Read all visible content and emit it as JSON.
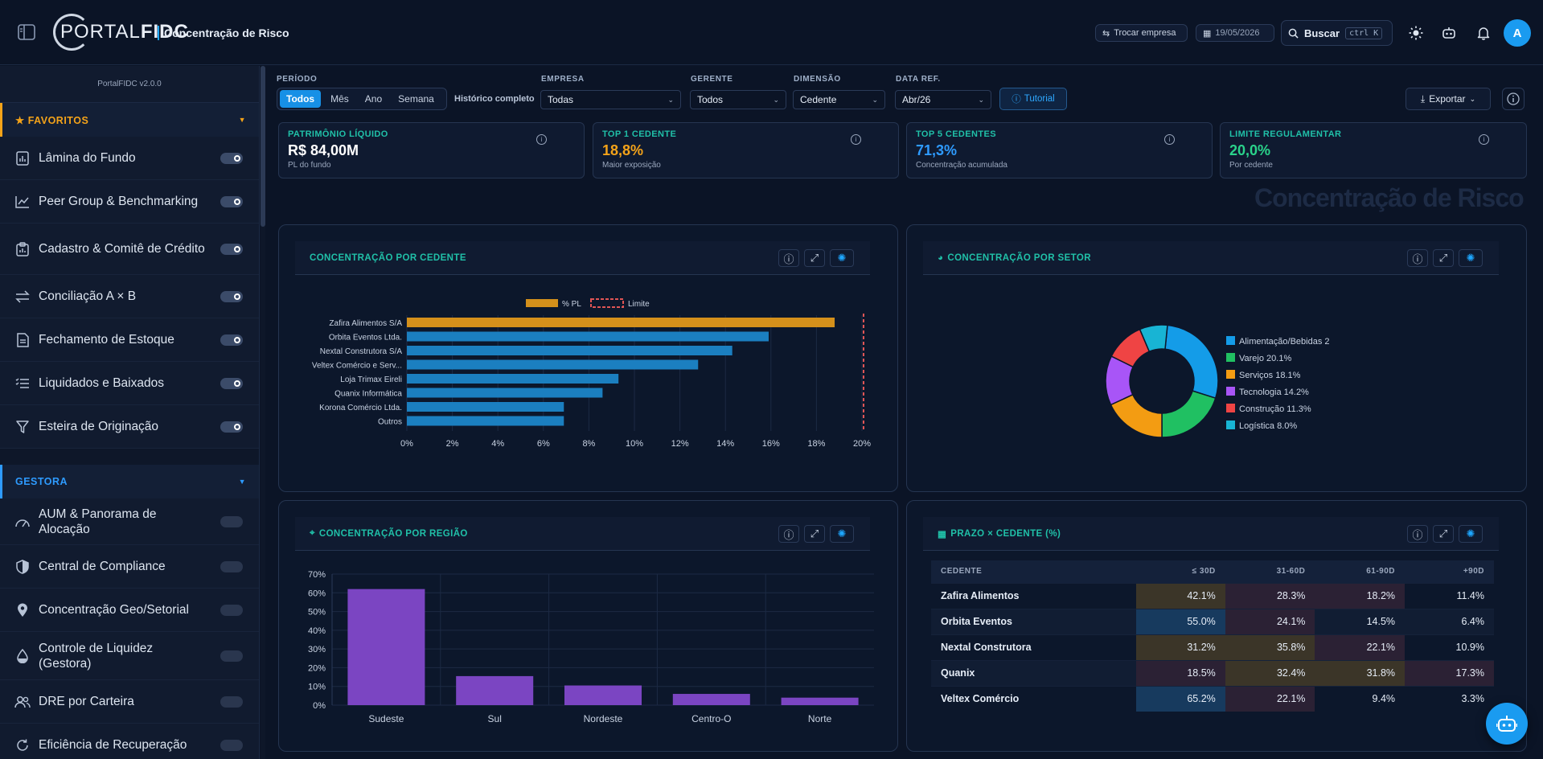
{
  "header": {
    "logo_text_a": "PORTAL",
    "logo_text_b": "FIDC",
    "page_title": "Concentração de Risco",
    "switch_company": "Trocar empresa",
    "date": "19/05/2026",
    "search_label": "Buscar",
    "shortcut": "ctrl K",
    "avatar_initial": "A"
  },
  "sidebar": {
    "version": "PortalFIDC v2.0.0",
    "favorites_title": "FAVORITOS",
    "favorites": [
      {
        "label": "Lâmina do Fundo",
        "icon": "report-icon",
        "enabled": true
      },
      {
        "label": "Peer Group & Benchmarking",
        "icon": "trend-icon",
        "enabled": true
      },
      {
        "label": "Cadastro & Comitê de Crédito",
        "icon": "clipboard-icon",
        "enabled": true
      },
      {
        "label": "Conciliação A × B",
        "icon": "swap-icon",
        "enabled": true
      },
      {
        "label": "Fechamento de Estoque",
        "icon": "document-icon",
        "enabled": true
      },
      {
        "label": "Liquidados e Baixados",
        "icon": "list-check-icon",
        "enabled": true
      },
      {
        "label": "Esteira de Originação",
        "icon": "funnel-icon",
        "enabled": true
      }
    ],
    "gestora_title": "GESTORA",
    "gestora": [
      {
        "label": "AUM & Panorama de Alocação",
        "icon": "gauge-icon",
        "enabled": false
      },
      {
        "label": "Central de Compliance",
        "icon": "shield-icon",
        "enabled": false
      },
      {
        "label": "Concentração Geo/Setorial",
        "icon": "pin-icon",
        "enabled": false
      },
      {
        "label": "Controle de Liquidez (Gestora)",
        "icon": "droplet-icon",
        "enabled": false
      },
      {
        "label": "DRE por Carteira",
        "icon": "users-icon",
        "enabled": false
      },
      {
        "label": "Eficiência de Recuperação",
        "icon": "refresh-icon",
        "enabled": false
      }
    ]
  },
  "filters": {
    "period_label": "PERÍODO",
    "period_options": [
      "Todos",
      "Mês",
      "Ano",
      "Semana"
    ],
    "period_selected": "Todos",
    "history": "Histórico completo",
    "empresa_label": "EMPRESA",
    "empresa_value": "Todas",
    "gerente_label": "GERENTE",
    "gerente_value": "Todos",
    "dimensao_label": "DIMENSÃO",
    "dimensao_value": "Cedente",
    "dataref_label": "DATA REF.",
    "dataref_value": "Abr/26",
    "tutorial": "Tutorial",
    "export": "Exportar"
  },
  "kpis": [
    {
      "title": "PATRIMÔNIO LÍQUIDO",
      "value": "R$ 84,00M",
      "sub": "PL do fundo",
      "color": "#20c0a8",
      "value_color": "#ffffff"
    },
    {
      "title": "TOP 1 CEDENTE",
      "value": "18,8%",
      "sub": "Maior exposição",
      "color": "#20c0a8",
      "value_color": "#f4a319"
    },
    {
      "title": "TOP 5 CEDENTES",
      "value": "71,3%",
      "sub": "Concentração acumulada",
      "color": "#20c0a8",
      "value_color": "#2e9bff"
    },
    {
      "title": "LIMITE REGULAMENTAR",
      "value": "20,0%",
      "sub": "Por cedente",
      "color": "#20c0a8",
      "value_color": "#2ad38b"
    }
  ],
  "ghost_title": "Concentração de Risco",
  "panels": {
    "cedente_title": "CONCENTRAÇÃO POR CEDENTE",
    "setor_title": "CONCENTRAÇÃO POR SETOR",
    "regiao_title": "CONCENTRAÇÃO POR REGIÃO",
    "prazo_title": "PRAZO × CEDENTE (%)"
  },
  "chart_data": [
    {
      "type": "bar",
      "orientation": "horizontal",
      "categories": [
        "Zafira Alimentos S/A",
        "Orbita Eventos Ltda.",
        "Nextal Construtora S/A",
        "Veltex Comércio e Serv...",
        "Loja Trimax Eireli",
        "Quanix Informática",
        "Korona Comércio Ltda.",
        "Outros"
      ],
      "series": [
        {
          "name": "% PL",
          "values": [
            18.8,
            15.9,
            14.3,
            12.8,
            9.3,
            8.6,
            6.9,
            6.9
          ]
        }
      ],
      "highlight_color": "#d4901b",
      "bar_color": "#1b7fc0",
      "limit": {
        "name": "Limite",
        "value": 20
      },
      "xlim": [
        0,
        20
      ],
      "xticks": [
        "0%",
        "2%",
        "4%",
        "6%",
        "8%",
        "10%",
        "12%",
        "14%",
        "16%",
        "18%",
        "20%"
      ],
      "legend": "top"
    },
    {
      "type": "pie",
      "donut": true,
      "slices": [
        {
          "label": "Alimentação/Bebidas 2",
          "value": 28.3,
          "color": "#149ce8"
        },
        {
          "label": "Varejo 20.1%",
          "value": 20.1,
          "color": "#20c062"
        },
        {
          "label": "Serviços 18.1%",
          "value": 18.1,
          "color": "#f39c12"
        },
        {
          "label": "Tecnologia 14.2%",
          "value": 14.2,
          "color": "#a855f7"
        },
        {
          "label": "Construção 11.3%",
          "value": 11.3,
          "color": "#ef4444"
        },
        {
          "label": "Logística 8.0%",
          "value": 8.0,
          "color": "#18b4d4"
        }
      ],
      "legend": "right"
    },
    {
      "type": "bar",
      "categories": [
        "Sudeste",
        "Sul",
        "Nordeste",
        "Centro-O",
        "Norte"
      ],
      "values": [
        62,
        15.5,
        10.5,
        6,
        4
      ],
      "bar_color": "#7b45c2",
      "ylim": [
        0,
        70
      ],
      "yticks": [
        "0%",
        "10%",
        "20%",
        "30%",
        "40%",
        "50%",
        "60%",
        "70%"
      ]
    },
    {
      "type": "table",
      "columns": [
        "CEDENTE",
        "≤ 30D",
        "31-60D",
        "61-90D",
        "+90D"
      ],
      "rows": [
        [
          "Zafira Alimentos",
          "42.1%",
          "28.3%",
          "18.2%",
          "11.4%"
        ],
        [
          "Orbita Eventos",
          "55.0%",
          "24.1%",
          "14.5%",
          "6.4%"
        ],
        [
          "Nextal Construtora",
          "31.2%",
          "35.8%",
          "22.1%",
          "10.9%"
        ],
        [
          "Quanix",
          "18.5%",
          "32.4%",
          "31.8%",
          "17.3%"
        ],
        [
          "Veltex Comércio",
          "65.2%",
          "22.1%",
          "9.4%",
          "3.3%"
        ]
      ]
    }
  ]
}
